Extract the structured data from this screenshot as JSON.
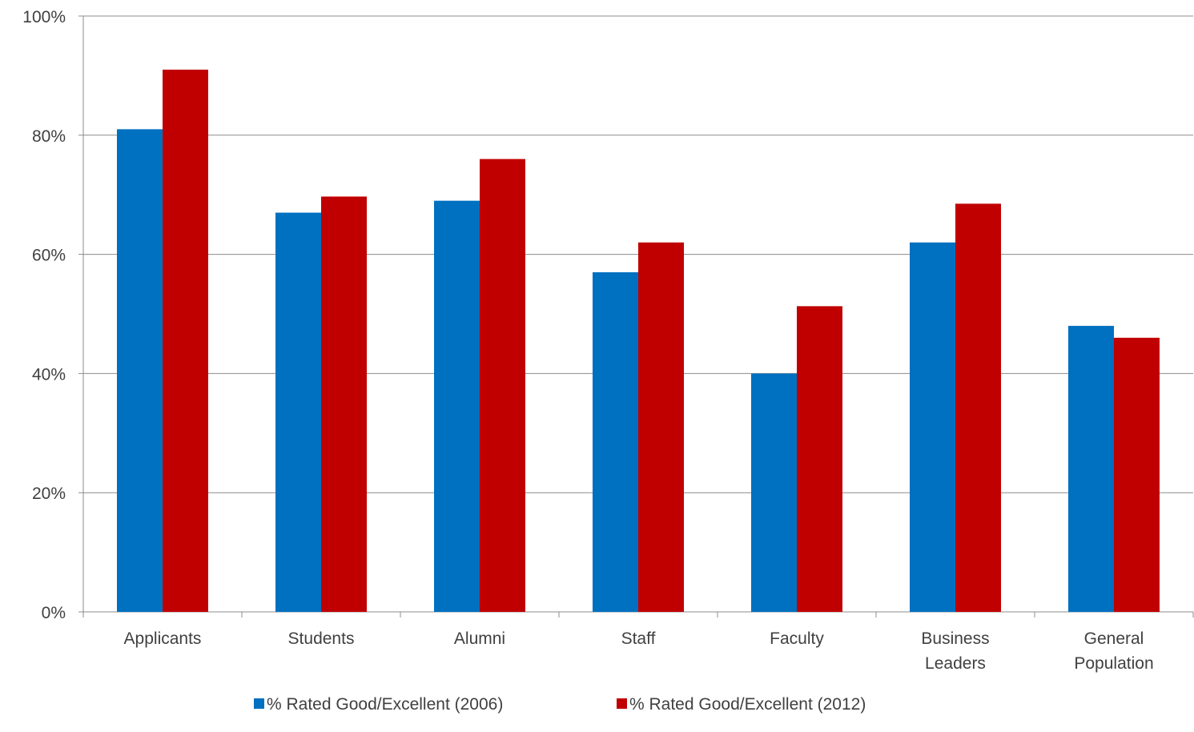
{
  "chart_data": {
    "type": "bar",
    "categories": [
      [
        "Applicants"
      ],
      [
        "Students"
      ],
      [
        "Alumni"
      ],
      [
        "Staff"
      ],
      [
        "Faculty"
      ],
      [
        "Business",
        "Leaders"
      ],
      [
        "General",
        "Population"
      ]
    ],
    "series": [
      {
        "name": "% Rated Good/Excellent (2006)",
        "color": "#0070C0",
        "values": [
          81,
          67,
          69,
          57,
          40,
          62,
          48
        ]
      },
      {
        "name": "% Rated Good/Excellent (2012)",
        "color": "#C00000",
        "values": [
          91,
          69.7,
          76,
          62,
          51.3,
          68.5,
          46
        ]
      }
    ],
    "y_ticks": [
      "0%",
      "20%",
      "40%",
      "60%",
      "80%",
      "100%"
    ],
    "ylim": [
      0,
      100
    ],
    "grid": true,
    "legend_position": "bottom-center",
    "title": "",
    "xlabel": "",
    "ylabel": ""
  }
}
